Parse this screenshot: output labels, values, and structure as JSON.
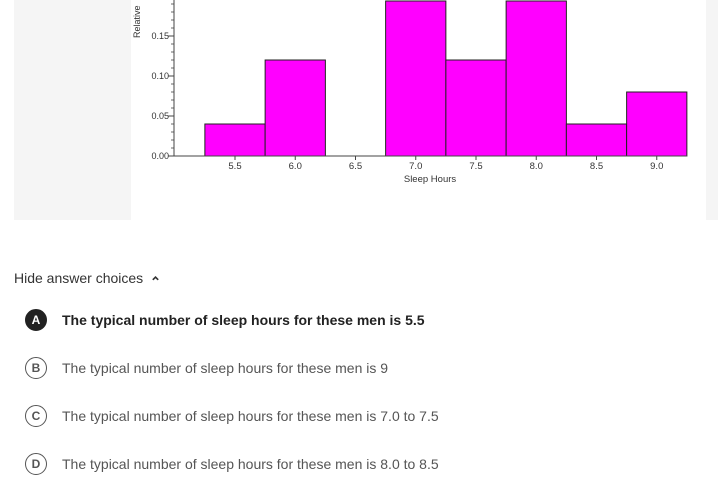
{
  "chart_data": {
    "type": "bar",
    "ylabel": "Relative",
    "xlabel": "Sleep Hours",
    "bin_edges": [
      5.25,
      5.75,
      6.25,
      6.75,
      7.25,
      7.75,
      8.25,
      8.75,
      9.25
    ],
    "values": [
      0.04,
      0.12,
      0.0,
      0.2,
      0.12,
      0.2,
      0.04,
      0.08
    ],
    "x_ticks": [
      "5.5",
      "6.0",
      "6.5",
      "7.0",
      "7.5",
      "8.0",
      "8.5",
      "9.0"
    ],
    "x_tick_values": [
      5.5,
      6.0,
      6.5,
      7.0,
      7.5,
      8.0,
      8.5,
      9.0
    ],
    "y_ticks": [
      "0.00",
      "0.05",
      "0.10",
      "0.15"
    ],
    "y_tick_values": [
      0.0,
      0.05,
      0.1,
      0.15
    ],
    "bar_color": "#ff00ff"
  },
  "answers": {
    "toggle_label": "Hide answer choices",
    "choices": [
      {
        "letter": "A",
        "text": "The typical number of sleep hours for these men is 5.5",
        "selected": true
      },
      {
        "letter": "B",
        "text": "The typical number of sleep hours for these men is 9",
        "selected": false
      },
      {
        "letter": "C",
        "text": "The typical number of sleep hours for these men is 7.0 to 7.5",
        "selected": false
      },
      {
        "letter": "D",
        "text": "The typical number of sleep hours for these men is 8.0 to 8.5",
        "selected": false
      }
    ]
  }
}
